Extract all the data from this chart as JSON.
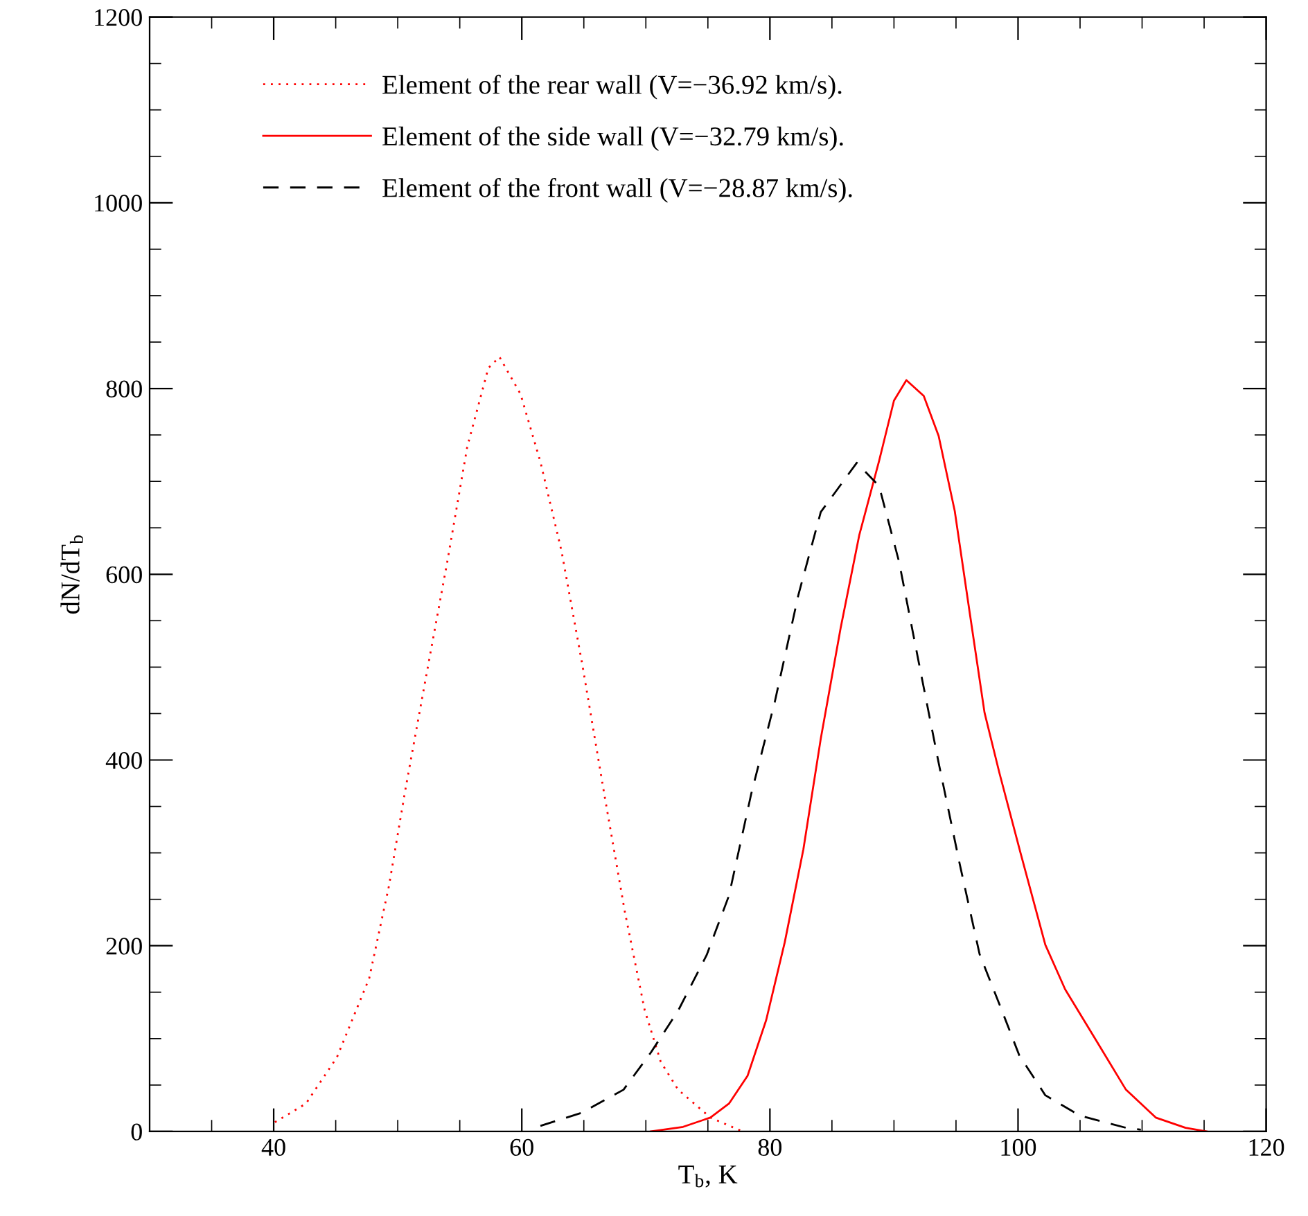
{
  "chart_data": {
    "type": "line",
    "xlabel": "T$_{b}$, K",
    "ylabel": "dN/dT$_{b}$",
    "xlim": [
      30,
      120
    ],
    "ylim": [
      0,
      1200
    ],
    "xticks": [
      {
        "value": 35,
        "label": null
      },
      40,
      {
        "value": 45,
        "label": null
      },
      {
        "value": 50,
        "label": null
      },
      {
        "value": 55,
        "label": null
      },
      60,
      {
        "value": 65,
        "label": null
      },
      {
        "value": 70,
        "label": null
      },
      {
        "value": 75,
        "label": null
      },
      80,
      {
        "value": 85,
        "label": null
      },
      {
        "value": 90,
        "label": null
      },
      {
        "value": 95,
        "label": null
      },
      100,
      {
        "value": 105,
        "label": null
      },
      {
        "value": 110,
        "label": null
      },
      {
        "value": 115,
        "label": null
      },
      120
    ],
    "yticks": [
      0,
      {
        "value": 50,
        "label": null
      },
      {
        "value": 100,
        "label": null
      },
      {
        "value": 150,
        "label": null
      },
      200,
      {
        "value": 250,
        "label": null
      },
      {
        "value": 300,
        "label": null
      },
      {
        "value": 350,
        "label": null
      },
      400,
      {
        "value": 450,
        "label": null
      },
      {
        "value": 500,
        "label": null
      },
      {
        "value": 550,
        "label": null
      },
      600,
      {
        "value": 650,
        "label": null
      },
      {
        "value": 700,
        "label": null
      },
      {
        "value": 750,
        "label": null
      },
      800,
      {
        "value": 850,
        "label": null
      },
      {
        "value": 900,
        "label": null
      },
      {
        "value": 950,
        "label": null
      },
      1000,
      {
        "value": 1050,
        "label": null
      },
      {
        "value": 1100,
        "label": null
      },
      {
        "value": 1150,
        "label": null
      },
      1200
    ],
    "legend": "top left",
    "grid": false,
    "marker": "none",
    "series": [
      {
        "name": "Element of the rear wall (V=−36.92 km/s).",
        "color": "#ff0000",
        "line_style": "dotted",
        "x": [
          40.1,
          42.6,
          45.1,
          47.7,
          49.3,
          50.6,
          52.3,
          54.0,
          55.6,
          57.3,
          58.2,
          59.9,
          61.5,
          63.2,
          64.9,
          66.6,
          68.3,
          69.9,
          71.2,
          72.6,
          75.2,
          77.8
        ],
        "values": [
          10,
          30,
          80,
          165,
          265,
          367,
          491,
          614,
          737,
          822,
          834,
          794,
          721,
          625,
          501,
          367,
          237,
          131,
          75,
          45,
          15,
          0
        ]
      },
      {
        "name": "Element of the side wall (V=−32.79 km/s).",
        "color": "#ff0000",
        "line_style": "solid",
        "x": [
          70.4,
          73.0,
          75.2,
          76.7,
          78.2,
          79.7,
          81.2,
          82.7,
          84.1,
          85.7,
          87.2,
          88.8,
          90.0,
          91.0,
          92.4,
          93.6,
          94.9,
          96.1,
          97.3,
          98.5,
          100.2,
          102.2,
          103.8,
          106.3,
          108.7,
          111.1,
          113.5,
          115.2
        ],
        "values": [
          0,
          5,
          15,
          30,
          60,
          120,
          204,
          304,
          423,
          542,
          642,
          722,
          787,
          809,
          792,
          749,
          668,
          559,
          451,
          386,
          300,
          201,
          153,
          98,
          45,
          15,
          4,
          0
        ]
      },
      {
        "name": "Element of the front wall (V=−28.87 km/s).",
        "color": "#000000",
        "line_style": "dashed",
        "x": [
          61.5,
          64.8,
          68.2,
          70.4,
          72.6,
          74.9,
          76.7,
          78.5,
          80.4,
          82.3,
          84.1,
          87.0,
          88.8,
          90.4,
          92.0,
          93.6,
          95.3,
          96.9,
          98.5,
          100.1,
          102.2,
          105.0,
          108.7,
          109.9
        ],
        "values": [
          6,
          20,
          45,
          85,
          130,
          190,
          254,
          364,
          463,
          578,
          667,
          720,
          695,
          614,
          505,
          397,
          288,
          191,
          137,
          82,
          39,
          17,
          4,
          2
        ]
      }
    ]
  }
}
